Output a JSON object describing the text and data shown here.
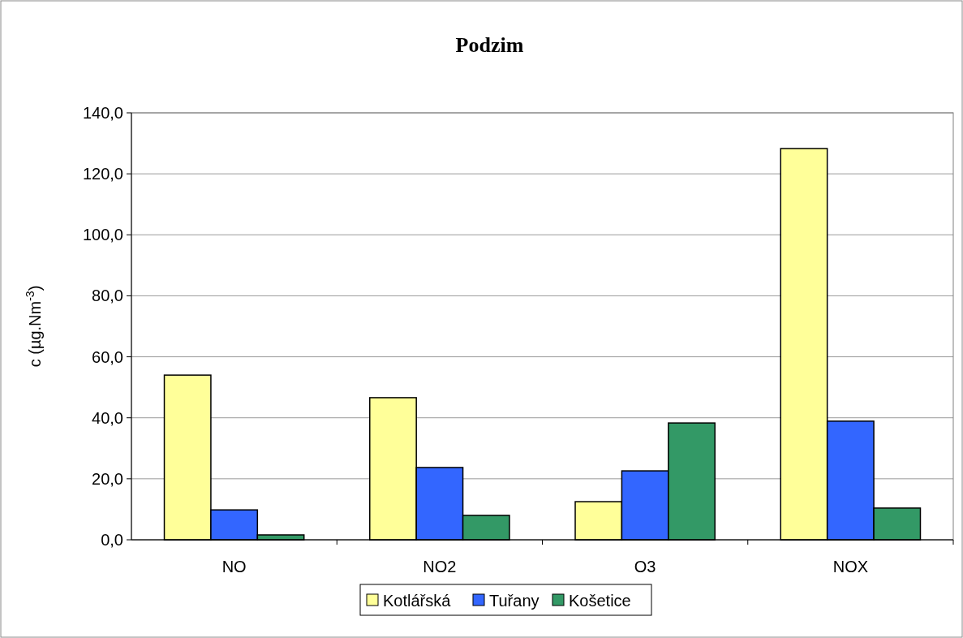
{
  "chart_data": {
    "type": "bar",
    "title": "Podzim",
    "ylabel": "c (µg.Nm$^{-3}$)",
    "categories": [
      "NO",
      "NO2",
      "O3",
      "NOX"
    ],
    "series": [
      {
        "name": "Kotlářská",
        "color": "#ffff99",
        "values": [
          54.0,
          46.6,
          12.5,
          128.3
        ]
      },
      {
        "name": "Tuřany",
        "color": "#3366ff",
        "values": [
          9.8,
          23.7,
          22.6,
          38.9
        ]
      },
      {
        "name": "Košetice",
        "color": "#339966",
        "values": [
          1.6,
          8.0,
          38.3,
          10.4
        ]
      }
    ],
    "ylim": [
      0,
      140
    ],
    "yticks": [
      {
        "value": 0,
        "label": "0,0"
      },
      {
        "value": 20,
        "label": "20,0"
      },
      {
        "value": 40,
        "label": "40,0"
      },
      {
        "value": 60,
        "label": "60,0"
      },
      {
        "value": 80,
        "label": "80,0"
      },
      {
        "value": 100,
        "label": "100,0"
      },
      {
        "value": 120,
        "label": "120,0"
      },
      {
        "value": 140,
        "label": "140,0"
      }
    ],
    "grid": "y",
    "legend": "bottom"
  }
}
